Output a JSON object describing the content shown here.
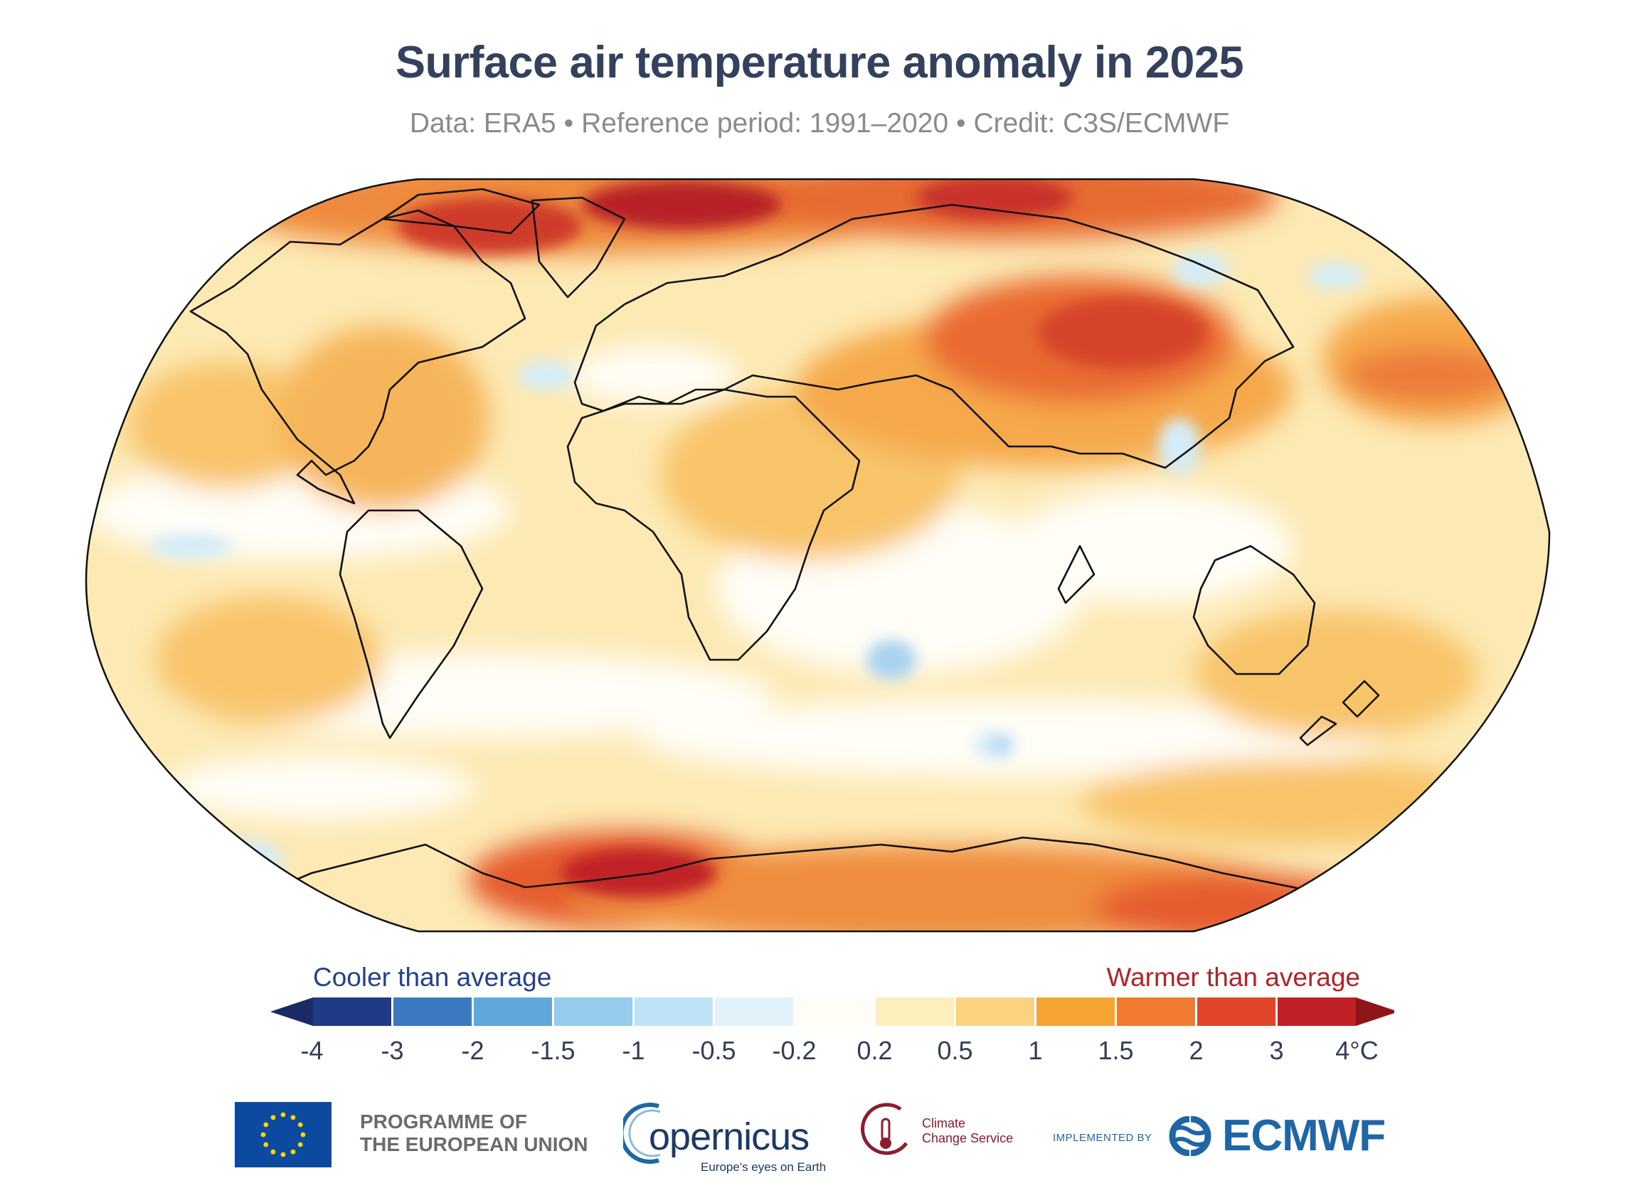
{
  "header": {
    "title": "Surface air temperature anomaly in 2025",
    "subtitle": "Data: ERA5 • Reference period: 1991–2020 • Credit: C3S/ECMWF"
  },
  "map": {
    "projection": "Robinson",
    "content": "world map of annual surface air temperature anomaly",
    "palette": {
      "ocean_neutral": "#fffdf6",
      "warm_light": "#fbe3a6",
      "warm_mid": "#f6b85c",
      "warm_orange": "#ef8c3c",
      "warm_strong": "#df4e2a",
      "warm_extreme": "#b82028",
      "cool_light": "#d4ecf8",
      "cool_mid": "#a9d2ef",
      "coastline": "#111111"
    }
  },
  "legend": {
    "cooler_label": "Cooler than average",
    "warmer_label": "Warmer than average",
    "cooler_color": "#23428a",
    "warmer_color": "#b52228",
    "ticks": [
      "-4",
      "-3",
      "-2",
      "-1.5",
      "-1",
      "-0.5",
      "-0.2",
      "0.2",
      "0.5",
      "1",
      "1.5",
      "2",
      "3",
      "4°C"
    ],
    "colors": [
      "#1f3a86",
      "#3a78bf",
      "#5fa8db",
      "#95ccee",
      "#bfe2f6",
      "#e2f2fb",
      "#fffdf6",
      "#fcefbd",
      "#fbd27d",
      "#f7a532",
      "#f07b2e",
      "#e0452a",
      "#c02126"
    ],
    "under_color": "#1b2a63",
    "over_color": "#8f1518"
  },
  "footer": {
    "eu_text_line1": "PROGRAMME OF",
    "eu_text_line2": "THE EUROPEAN UNION",
    "copernicus_word": "opernicus",
    "copernicus_tagline": "Europe's eyes on Earth",
    "c3s_line1": "Climate",
    "c3s_line2": "Change Service",
    "implemented_by": "IMPLEMENTED BY",
    "ecmwf_word": "ECMWF"
  }
}
